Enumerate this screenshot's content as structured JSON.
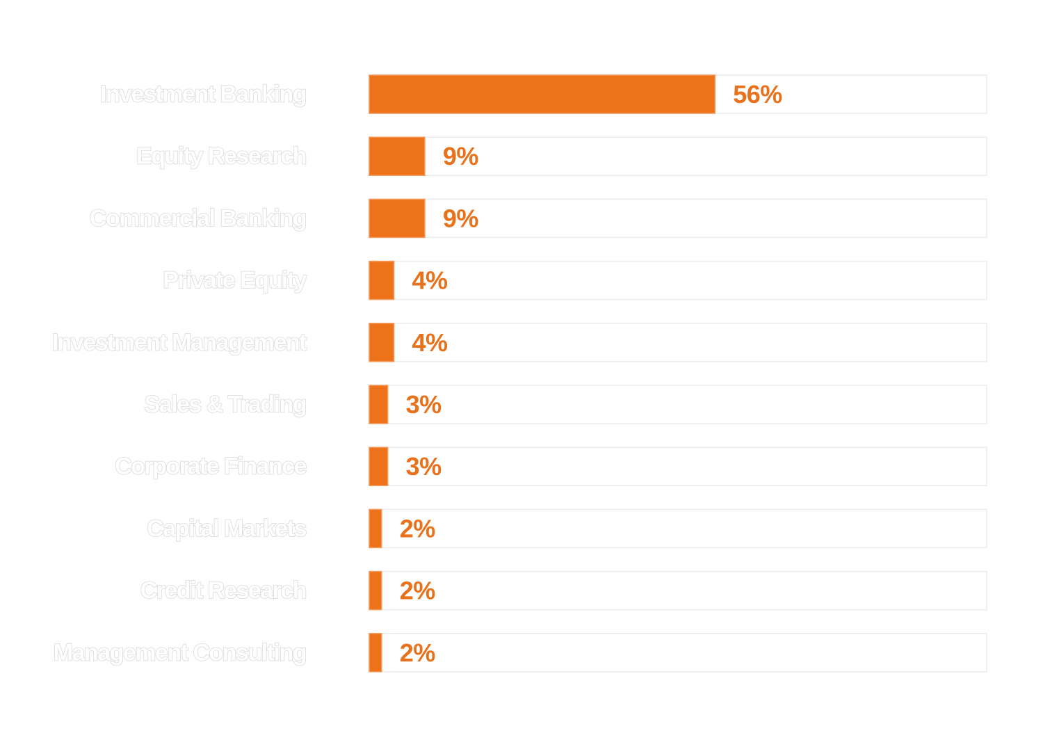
{
  "colors": {
    "bar": "#ee7219",
    "bar_edge": "#f39a5c",
    "track_border": "#ececec",
    "label_outline": "#d9d9d9",
    "value_text": "#e8711c"
  },
  "chart_data": {
    "type": "bar",
    "orientation": "horizontal",
    "categories": [
      "Investment Banking",
      "Equity Research",
      "Commercial Banking",
      "Private Equity",
      "Investment Management",
      "Sales & Trading",
      "Corporate Finance",
      "Capital Markets",
      "Credit Research",
      "Management Consulting"
    ],
    "values": [
      56,
      9,
      9,
      4,
      4,
      3,
      3,
      2,
      2,
      2
    ],
    "value_labels": [
      "56%",
      "9%",
      "9%",
      "4%",
      "4%",
      "3%",
      "3%",
      "2%",
      "2%",
      "2%"
    ],
    "xlim": [
      0,
      100
    ],
    "grid": false,
    "legend": "none"
  }
}
